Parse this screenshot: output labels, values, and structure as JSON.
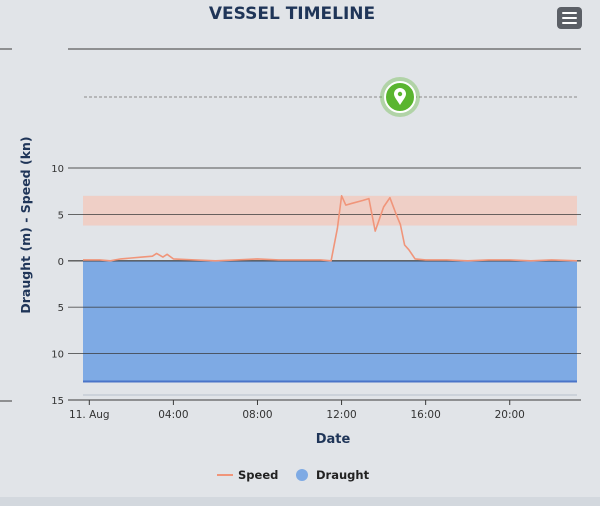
{
  "header": {
    "title": "VESSEL TIMELINE",
    "menu_icon": "hamburger-menu-icon"
  },
  "marker_icon": "location-pin-icon",
  "colors": {
    "speed": "#f0957a",
    "draught": "#7eaae4",
    "draught_edge": "#4a74c8",
    "speed_band": "#f2c9bd",
    "marker": "#5ab52f",
    "title": "#1f3558"
  },
  "chart_data": {
    "type": "area",
    "title": "VESSEL TIMELINE",
    "xlabel": "Date",
    "ylabel": "Draught (m) - Speed (kn)",
    "x_unit": "hours",
    "x_range": [
      -0.3,
      23.2
    ],
    "x_ticks": [
      {
        "x": 0,
        "label": "11. Aug"
      },
      {
        "x": 4,
        "label": "04:00"
      },
      {
        "x": 8,
        "label": "08:00"
      },
      {
        "x": 12,
        "label": "12:00"
      },
      {
        "x": 16,
        "label": "16:00"
      },
      {
        "x": 20,
        "label": "20:00"
      }
    ],
    "ylim": [
      -15,
      10
    ],
    "y_ticks": [
      {
        "y": 10,
        "label": "10"
      },
      {
        "y": 5,
        "label": "5"
      },
      {
        "y": 0,
        "label": "0"
      },
      {
        "y": -5,
        "label": "5"
      },
      {
        "y": -10,
        "label": "10"
      },
      {
        "y": -15,
        "label": "15"
      }
    ],
    "speed_band": [
      3.8,
      7.0
    ],
    "grid": true,
    "legend_position": "bottom-center",
    "series": [
      {
        "name": "Speed",
        "type": "line",
        "x": [
          -0.3,
          0.5,
          1.0,
          1.5,
          2.0,
          2.5,
          3.0,
          3.2,
          3.5,
          3.7,
          4.0,
          5.0,
          6.0,
          7.0,
          8.0,
          9.0,
          10.0,
          11.0,
          11.5,
          11.8,
          12.0,
          12.2,
          12.5,
          13.0,
          13.3,
          13.6,
          14.0,
          14.3,
          14.6,
          14.8,
          15.0,
          15.2,
          15.5,
          16.0,
          17.0,
          18.0,
          19.0,
          20.0,
          21.0,
          22.0,
          23.2
        ],
        "y": [
          0.1,
          0.1,
          0.0,
          0.2,
          0.3,
          0.4,
          0.5,
          0.8,
          0.4,
          0.7,
          0.2,
          0.1,
          0.0,
          0.1,
          0.2,
          0.1,
          0.1,
          0.1,
          0.0,
          3.5,
          7.0,
          6.0,
          6.2,
          6.5,
          6.7,
          3.2,
          5.8,
          6.8,
          5.0,
          3.9,
          1.7,
          1.2,
          0.2,
          0.1,
          0.1,
          0.0,
          0.1,
          0.1,
          0.0,
          0.1,
          0.0
        ]
      },
      {
        "name": "Draught",
        "type": "area",
        "x": [
          -0.3,
          23.2
        ],
        "y": [
          -13.0,
          -13.0
        ]
      }
    ]
  }
}
